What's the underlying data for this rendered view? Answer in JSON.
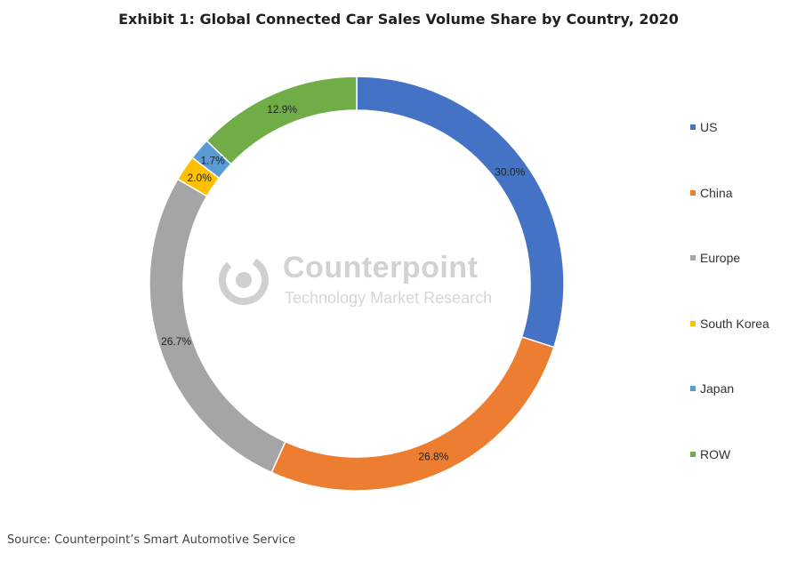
{
  "title": "Exhibit 1: Global Connected Car Sales Volume Share by Country, 2020",
  "source": "Source: Counterpoint’s Smart Automotive Service",
  "watermark": {
    "name": "Counterpoint",
    "tagline": "Technology Market Research"
  },
  "chart_data": {
    "type": "pie",
    "style": "donut",
    "title": "Exhibit 1: Global Connected Car Sales Volume Share by Country, 2020",
    "legend_position": "right",
    "categories": [
      "US",
      "China",
      "Europe",
      "South Korea",
      "Japan",
      "ROW"
    ],
    "values": [
      30.0,
      26.8,
      26.7,
      2.0,
      1.7,
      12.9
    ],
    "labels": [
      "30.0%",
      "26.8%",
      "26.7%",
      "2.0%",
      "1.7%",
      "12.9%"
    ],
    "colors": [
      "#4472c4",
      "#ed7d31",
      "#a5a5a5",
      "#ffc000",
      "#5b9bd5",
      "#70ad47"
    ]
  }
}
